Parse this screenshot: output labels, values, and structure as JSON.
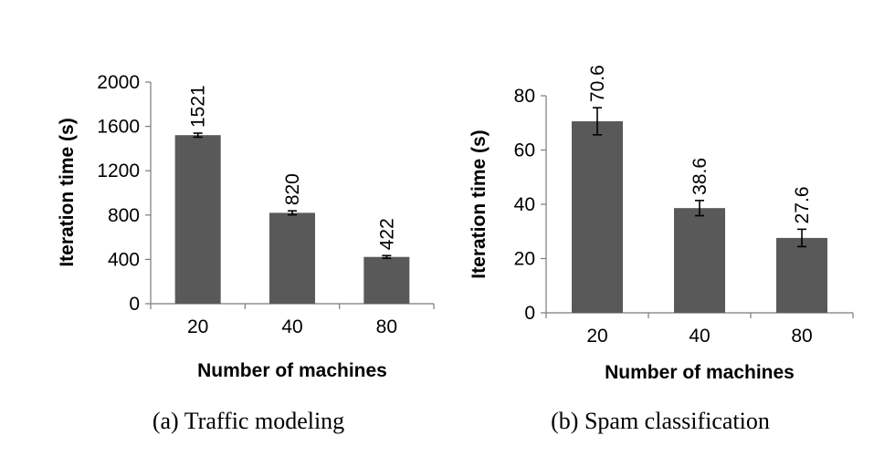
{
  "chart_data": [
    {
      "type": "bar",
      "categories": [
        "20",
        "40",
        "80"
      ],
      "values": [
        1521,
        820,
        422
      ],
      "errors": [
        18,
        18,
        12
      ],
      "data_labels": [
        "1521",
        "820",
        "422"
      ],
      "xlabel": "Number of machines",
      "ylabel": "Iteration time (s)",
      "ylim": [
        0,
        2000
      ],
      "yticks": [
        0,
        400,
        800,
        1200,
        1600,
        2000
      ],
      "ytick_labels": [
        "0",
        "400",
        "800",
        "1200",
        "1600",
        "2000"
      ],
      "caption": "(a)  Traffic modeling",
      "bar_color": "#595959",
      "grid": false
    },
    {
      "type": "bar",
      "categories": [
        "20",
        "40",
        "80"
      ],
      "values": [
        70.6,
        38.6,
        27.6
      ],
      "errors": [
        5.0,
        2.8,
        3.2
      ],
      "data_labels": [
        "70.6",
        "38.6",
        "27.6"
      ],
      "xlabel": "Number of machines",
      "ylabel": "Iteration time (s)",
      "ylim": [
        0,
        80
      ],
      "yticks": [
        0,
        20,
        40,
        60,
        80
      ],
      "ytick_labels": [
        "0",
        "20",
        "40",
        "60",
        "80"
      ],
      "caption": "(b)  Spam classification",
      "bar_color": "#595959",
      "grid": false
    }
  ]
}
